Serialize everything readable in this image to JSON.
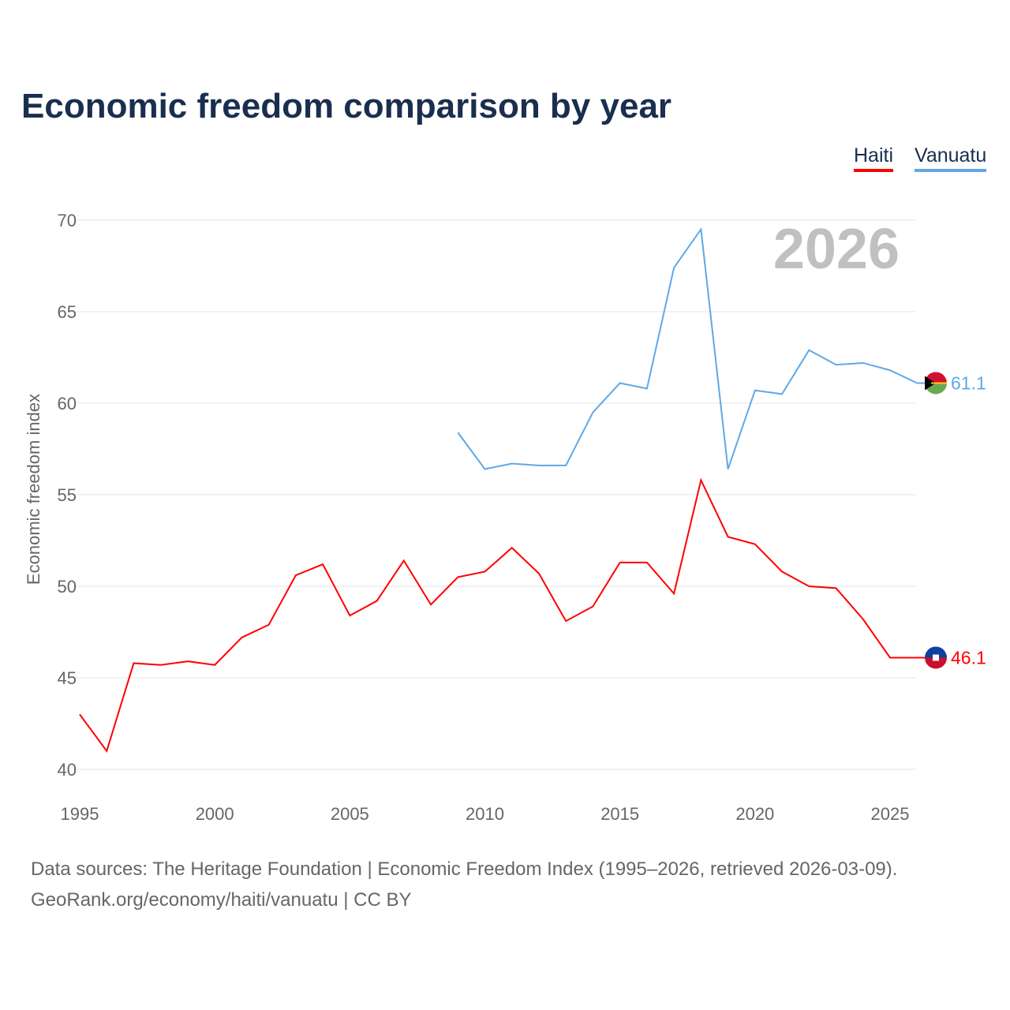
{
  "chart_data": {
    "type": "line",
    "title": "Economic freedom comparison by year",
    "ylabel": "Economic freedom index",
    "xlabel": "",
    "ylim": [
      40,
      70
    ],
    "xlim": [
      1995,
      2026
    ],
    "yticks": [
      40,
      45,
      50,
      55,
      60,
      65,
      70
    ],
    "xticks": [
      1995,
      2000,
      2005,
      2010,
      2015,
      2020,
      2025
    ],
    "year_watermark": "2026",
    "legend_position": "top-right",
    "grid": true,
    "series": [
      {
        "name": "Haiti",
        "color": "#ff0000",
        "end_label": "46.1",
        "x": [
          1995,
          1996,
          1997,
          1998,
          1999,
          2000,
          2001,
          2002,
          2003,
          2004,
          2005,
          2006,
          2007,
          2008,
          2009,
          2010,
          2011,
          2012,
          2013,
          2014,
          2015,
          2016,
          2017,
          2018,
          2019,
          2020,
          2021,
          2022,
          2023,
          2024,
          2025,
          2026
        ],
        "y": [
          43.0,
          41.0,
          45.8,
          45.7,
          45.9,
          45.7,
          47.2,
          47.9,
          50.6,
          51.2,
          48.4,
          49.2,
          51.4,
          49.0,
          50.5,
          50.8,
          52.1,
          50.7,
          48.1,
          48.9,
          51.3,
          51.3,
          49.6,
          55.8,
          52.7,
          52.3,
          50.8,
          50.0,
          49.9,
          48.2,
          46.1,
          46.1
        ]
      },
      {
        "name": "Vanuatu",
        "color": "#5fa8e8",
        "end_label": "61.1",
        "x": [
          2009,
          2010,
          2011,
          2012,
          2013,
          2014,
          2015,
          2016,
          2017,
          2018,
          2019,
          2020,
          2021,
          2022,
          2023,
          2024,
          2025,
          2026
        ],
        "y": [
          58.4,
          56.4,
          56.7,
          56.6,
          56.6,
          59.5,
          61.1,
          60.8,
          67.4,
          69.5,
          56.4,
          60.7,
          60.5,
          62.9,
          62.1,
          62.2,
          61.8,
          61.1
        ]
      }
    ]
  },
  "sources": {
    "line1": "Data sources: The Heritage Foundation | Economic Freedom Index (1995–2026, retrieved 2026-03-09).",
    "line2": "GeoRank.org/economy/haiti/vanuatu | CC BY"
  }
}
